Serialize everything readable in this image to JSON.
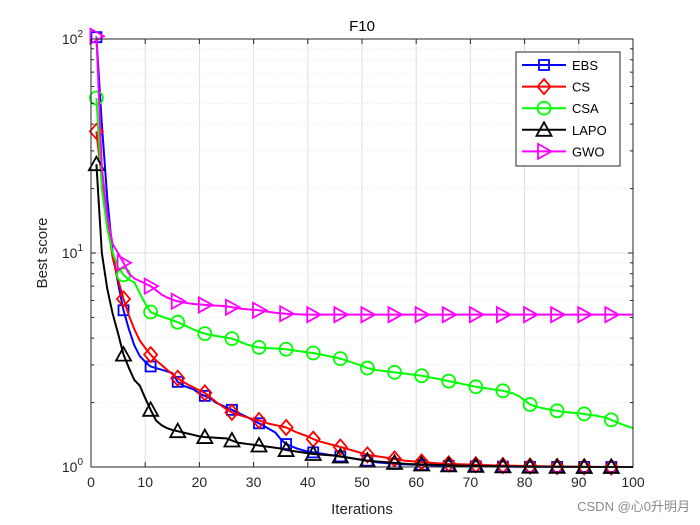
{
  "watermark": "CSDN @心0升明月",
  "chart_data": {
    "type": "line",
    "title": "F10",
    "xlabel": "Iterations",
    "ylabel": "Best score",
    "xlim": [
      0,
      100
    ],
    "ylim": [
      1,
      100
    ],
    "yscale": "log",
    "grid": true,
    "legend_position": "top-right",
    "x_ticks": [
      0,
      10,
      20,
      30,
      40,
      50,
      60,
      70,
      80,
      90,
      100
    ],
    "y_ticks": [
      {
        "value": 1,
        "base": "10",
        "exp": "0"
      },
      {
        "value": 10,
        "base": "10",
        "exp": "1"
      },
      {
        "value": 100,
        "base": "10",
        "exp": "2"
      }
    ],
    "x": [
      1,
      2,
      3,
      4,
      5,
      6,
      7,
      8,
      9,
      10,
      11,
      12,
      13,
      14,
      15,
      16,
      17,
      18,
      19,
      20,
      21,
      22,
      23,
      24,
      25,
      26,
      27,
      28,
      29,
      30,
      31,
      32,
      33,
      34,
      35,
      36,
      37,
      38,
      39,
      40,
      41,
      42,
      43,
      44,
      45,
      46,
      47,
      48,
      49,
      50,
      51,
      52,
      53,
      54,
      55,
      56,
      57,
      58,
      59,
      60,
      61,
      62,
      63,
      64,
      65,
      66,
      67,
      68,
      69,
      70,
      71,
      72,
      73,
      74,
      75,
      76,
      77,
      78,
      79,
      80,
      81,
      82,
      83,
      84,
      85,
      86,
      87,
      88,
      89,
      90,
      91,
      92,
      93,
      94,
      95,
      96,
      97,
      98,
      99,
      100
    ],
    "series": [
      {
        "name": "EBS",
        "color": "#0000ff",
        "marker": "square",
        "values": [
          102,
          40,
          18,
          10,
          7.2,
          5.4,
          4.4,
          3.7,
          3.3,
          3.1,
          2.95,
          2.9,
          2.85,
          2.8,
          2.75,
          2.5,
          2.4,
          2.35,
          2.3,
          2.2,
          2.15,
          2.1,
          2.0,
          1.95,
          1.9,
          1.85,
          1.8,
          1.75,
          1.7,
          1.65,
          1.6,
          1.55,
          1.5,
          1.45,
          1.35,
          1.28,
          1.25,
          1.22,
          1.2,
          1.18,
          1.17,
          1.16,
          1.15,
          1.14,
          1.13,
          1.12,
          1.11,
          1.1,
          1.09,
          1.08,
          1.07,
          1.06,
          1.05,
          1.045,
          1.04,
          1.035,
          1.03,
          1.028,
          1.026,
          1.024,
          1.022,
          1.02,
          1.018,
          1.016,
          1.014,
          1.012,
          1.011,
          1.01,
          1.009,
          1.008,
          1.007,
          1.006,
          1.005,
          1.005,
          1.004,
          1.004,
          1.003,
          1.003,
          1.003,
          1.002,
          1.002,
          1.002,
          1.002,
          1.001,
          1.001,
          1.001,
          1.001,
          1.001,
          1.001,
          1.001,
          1.001,
          1.001,
          1.0,
          1.0,
          1.0,
          1.0,
          1.0,
          1.0,
          1.0,
          1.0
        ]
      },
      {
        "name": "CS",
        "color": "#ff0000",
        "marker": "diamond",
        "values": [
          37,
          22,
          14,
          9.5,
          7.5,
          6.1,
          5.1,
          4.4,
          3.9,
          3.6,
          3.35,
          3.15,
          3.0,
          2.85,
          2.72,
          2.6,
          2.5,
          2.42,
          2.35,
          2.28,
          2.22,
          2.12,
          2.02,
          1.94,
          1.86,
          1.8,
          1.76,
          1.73,
          1.7,
          1.67,
          1.65,
          1.62,
          1.59,
          1.57,
          1.55,
          1.53,
          1.49,
          1.45,
          1.42,
          1.39,
          1.35,
          1.32,
          1.3,
          1.28,
          1.26,
          1.24,
          1.22,
          1.2,
          1.18,
          1.16,
          1.14,
          1.13,
          1.12,
          1.11,
          1.1,
          1.09,
          1.08,
          1.07,
          1.065,
          1.06,
          1.055,
          1.05,
          1.045,
          1.04,
          1.037,
          1.034,
          1.032,
          1.03,
          1.028,
          1.026,
          1.024,
          1.022,
          1.02,
          1.018,
          1.016,
          1.015,
          1.014,
          1.013,
          1.012,
          1.011,
          1.01,
          1.009,
          1.008,
          1.007,
          1.006,
          1.005,
          1.004,
          1.004,
          1.003,
          1.003,
          1.002,
          1.002,
          1.001,
          1.001,
          1.001,
          1.0,
          1.0,
          1.0,
          1.0,
          1.0
        ]
      },
      {
        "name": "CSA",
        "color": "#00ff00",
        "marker": "circle",
        "values": [
          53,
          20,
          13,
          10,
          8.6,
          7.9,
          7.5,
          7.3,
          6.5,
          5.8,
          5.3,
          5.15,
          5.05,
          4.95,
          4.85,
          4.75,
          4.62,
          4.5,
          4.38,
          4.28,
          4.2,
          4.15,
          4.1,
          4.06,
          4.02,
          3.98,
          3.9,
          3.8,
          3.72,
          3.66,
          3.62,
          3.6,
          3.59,
          3.58,
          3.57,
          3.55,
          3.52,
          3.49,
          3.46,
          3.43,
          3.41,
          3.37,
          3.33,
          3.29,
          3.25,
          3.21,
          3.15,
          3.09,
          3.03,
          2.97,
          2.9,
          2.86,
          2.83,
          2.81,
          2.79,
          2.77,
          2.75,
          2.73,
          2.71,
          2.69,
          2.67,
          2.64,
          2.61,
          2.58,
          2.55,
          2.52,
          2.49,
          2.46,
          2.43,
          2.4,
          2.37,
          2.35,
          2.33,
          2.31,
          2.29,
          2.27,
          2.24,
          2.2,
          2.14,
          2.05,
          1.96,
          1.92,
          1.89,
          1.87,
          1.85,
          1.83,
          1.81,
          1.8,
          1.79,
          1.78,
          1.77,
          1.75,
          1.74,
          1.72,
          1.7,
          1.66,
          1.62,
          1.58,
          1.55,
          1.52
        ]
      },
      {
        "name": "LAPO",
        "color": "#000000",
        "marker": "triangle-up",
        "values": [
          26,
          10,
          6.8,
          5.2,
          4.2,
          3.35,
          2.9,
          2.55,
          2.4,
          2.1,
          1.85,
          1.65,
          1.57,
          1.52,
          1.49,
          1.47,
          1.45,
          1.43,
          1.41,
          1.39,
          1.38,
          1.375,
          1.37,
          1.365,
          1.36,
          1.33,
          1.3,
          1.29,
          1.28,
          1.27,
          1.26,
          1.25,
          1.24,
          1.23,
          1.22,
          1.2,
          1.19,
          1.18,
          1.17,
          1.16,
          1.15,
          1.145,
          1.14,
          1.135,
          1.13,
          1.12,
          1.11,
          1.1,
          1.09,
          1.08,
          1.07,
          1.065,
          1.06,
          1.055,
          1.05,
          1.045,
          1.04,
          1.035,
          1.032,
          1.03,
          1.028,
          1.026,
          1.024,
          1.022,
          1.02,
          1.018,
          1.016,
          1.015,
          1.014,
          1.013,
          1.012,
          1.011,
          1.01,
          1.009,
          1.008,
          1.007,
          1.006,
          1.005,
          1.004,
          1.004,
          1.003,
          1.003,
          1.002,
          1.002,
          1.002,
          1.001,
          1.001,
          1.001,
          1.001,
          1.001,
          1.0,
          1.0,
          1.0,
          1.0,
          1.0,
          1.0,
          1.0,
          1.0,
          1.0,
          1.0
        ]
      },
      {
        "name": "GWO",
        "color": "#ff00ff",
        "marker": "triangle-right",
        "values": [
          103,
          25,
          15,
          11,
          10,
          9.0,
          8.0,
          7.6,
          7.4,
          7.2,
          7.0,
          6.7,
          6.4,
          6.2,
          6.05,
          5.95,
          5.88,
          5.82,
          5.78,
          5.75,
          5.72,
          5.7,
          5.68,
          5.66,
          5.64,
          5.58,
          5.52,
          5.48,
          5.45,
          5.43,
          5.4,
          5.35,
          5.3,
          5.26,
          5.23,
          5.2,
          5.18,
          5.17,
          5.16,
          5.15,
          5.15,
          5.15,
          5.15,
          5.15,
          5.15,
          5.15,
          5.15,
          5.15,
          5.15,
          5.15,
          5.15,
          5.15,
          5.15,
          5.15,
          5.15,
          5.15,
          5.15,
          5.15,
          5.15,
          5.15,
          5.15,
          5.15,
          5.15,
          5.15,
          5.15,
          5.15,
          5.15,
          5.15,
          5.15,
          5.15,
          5.15,
          5.15,
          5.15,
          5.15,
          5.15,
          5.15,
          5.15,
          5.15,
          5.15,
          5.15,
          5.15,
          5.15,
          5.15,
          5.15,
          5.15,
          5.15,
          5.15,
          5.15,
          5.15,
          5.15,
          5.15,
          5.15,
          5.15,
          5.15,
          5.15,
          5.15,
          5.15,
          5.15,
          5.15,
          5.15
        ]
      }
    ]
  }
}
